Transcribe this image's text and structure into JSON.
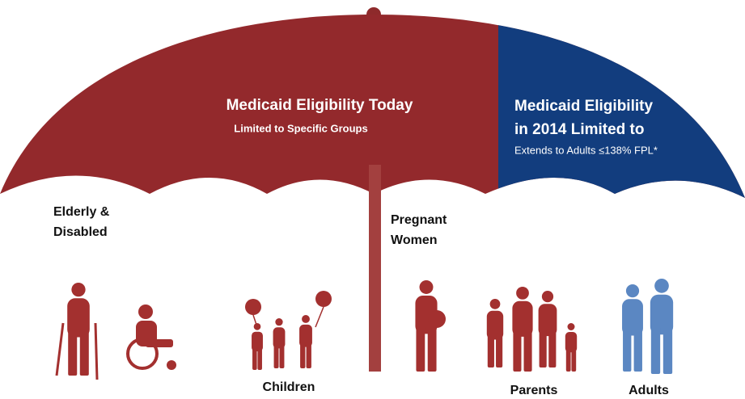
{
  "left_panel": {
    "title": "Medicaid Eligibility Today",
    "subtitle": "Limited to Specific Groups"
  },
  "right_panel": {
    "title_lines": [
      "Medicaid Eligibility",
      "in 2014 Limited to"
    ],
    "subtitle": "Extends to Adults ≤138% FPL*"
  },
  "groups": [
    {
      "label_lines": [
        "Elderly &",
        "Disabled"
      ]
    },
    {
      "label_lines": [
        "Pregnant",
        "Women"
      ]
    },
    {
      "label_lines": [
        "Children"
      ]
    },
    {
      "label_lines": [
        "Parents"
      ]
    },
    {
      "label_lines": [
        "Adults"
      ]
    }
  ]
}
